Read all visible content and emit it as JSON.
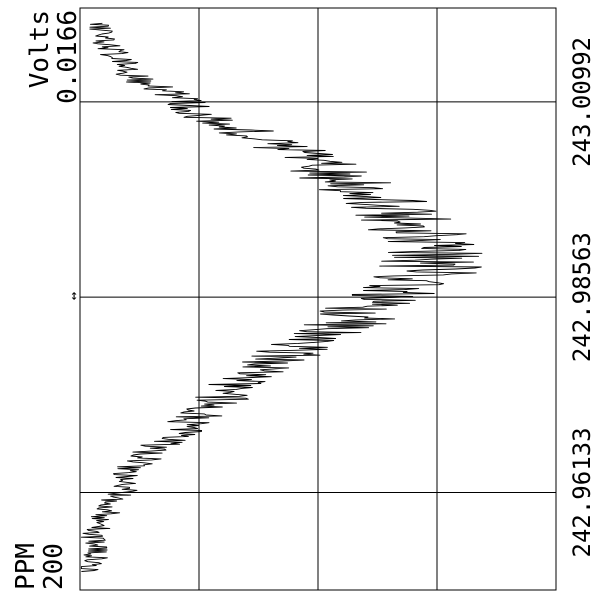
{
  "chart_data": {
    "type": "line",
    "orientation": "rotated-90",
    "y_axis": {
      "label": "Volts",
      "max_label": "0.0166",
      "min_label": "",
      "range": [
        0,
        0.0166
      ]
    },
    "x_axis": {
      "label": "PPM",
      "scale_label": "200",
      "tick_labels": [
        "242.96133",
        "242.98563",
        "243.00992"
      ],
      "range": [
        242.9492,
        243.0216
      ]
    },
    "grid": true,
    "cursor_marker": "↔",
    "series": [
      {
        "x": [
          242.9515,
          242.9537,
          242.9559,
          242.9581,
          242.9603,
          242.9625,
          242.9647,
          242.9669,
          242.9691,
          242.9713,
          242.9735,
          242.9757,
          242.9779,
          242.9801,
          242.9823,
          242.9845,
          242.9867,
          242.9889,
          242.9911,
          242.9933,
          242.9955,
          242.9977,
          242.9999,
          243.0021,
          243.0043,
          243.0065,
          243.0087,
          243.0109,
          243.0131,
          243.0153,
          243.0175,
          243.0197
        ],
        "values": [
          0.0002,
          0.0006,
          0.0004,
          0.0008,
          0.0012,
          0.0016,
          0.0019,
          0.0027,
          0.0036,
          0.0043,
          0.0051,
          0.0058,
          0.0069,
          0.0081,
          0.0093,
          0.0102,
          0.0115,
          0.0121,
          0.0124,
          0.0118,
          0.0113,
          0.0104,
          0.0094,
          0.0083,
          0.0071,
          0.0056,
          0.0041,
          0.0031,
          0.0018,
          0.0014,
          0.0008,
          0.0006
        ]
      }
    ]
  }
}
